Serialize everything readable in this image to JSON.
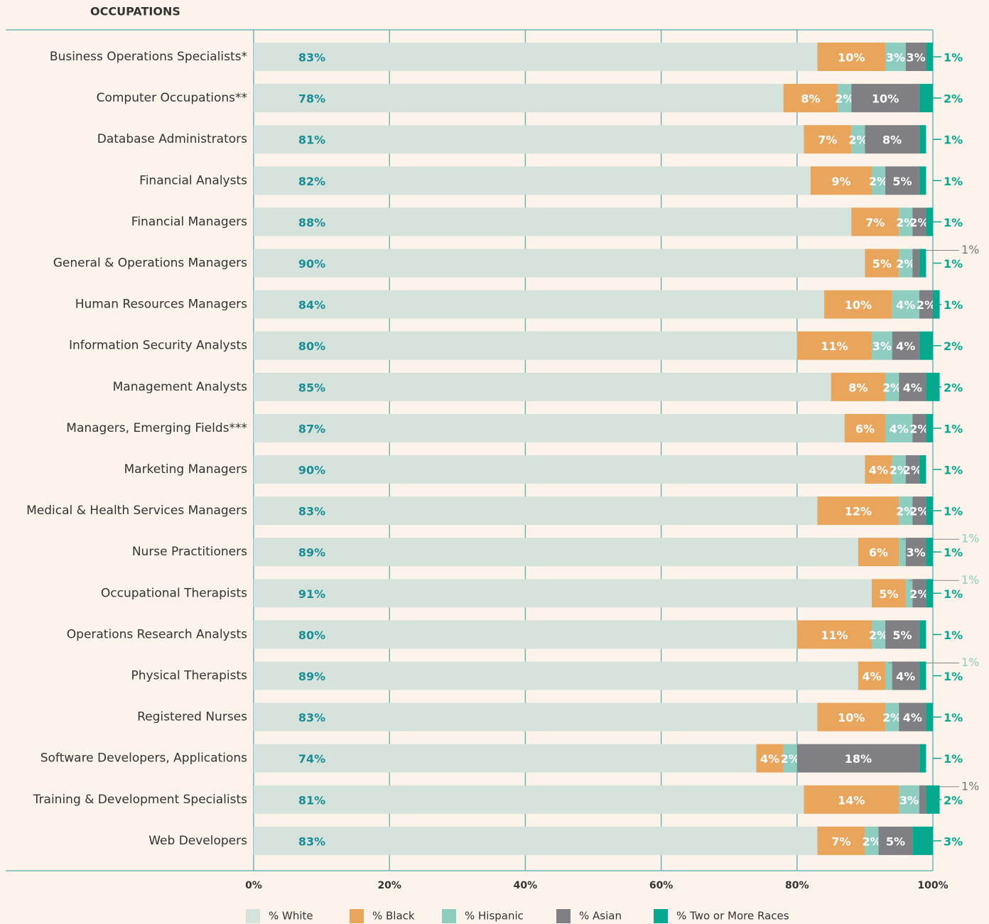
{
  "chart_data": {
    "type": "stacked-bar-horizontal",
    "title": "OCCUPATIONS",
    "categories": [
      "Business Operations Specialists*",
      "Computer Occupations**",
      "Database Administrators",
      "Financial Analysts",
      "Financial Managers",
      "General & Operations Managers",
      "Human Resources Managers",
      "Information Security Analysts",
      "Management Analysts",
      "Managers, Emerging Fields***",
      "Marketing Managers",
      "Medical & Health Services Managers",
      "Nurse Practitioners",
      "Occupational Therapists",
      "Operations Research Analysts",
      "Physical Therapists",
      "Registered Nurses",
      "Software Developers, Applications",
      "Training & Development Specialists",
      "Web Developers"
    ],
    "series": [
      {
        "name": "% White",
        "color": "#d6e2dc",
        "values": [
          83,
          78,
          81,
          82,
          88,
          90,
          84,
          80,
          85,
          87,
          90,
          83,
          89,
          91,
          80,
          89,
          83,
          74,
          81,
          83
        ],
        "value_labels": [
          "83%",
          "78%",
          "81%",
          "82%",
          "88%",
          "90%",
          "84%",
          "80%",
          "85%",
          "87%",
          "90%",
          "83%",
          "89%",
          "91%",
          "80%",
          "89%",
          "83%",
          "74%",
          "81%",
          "83%"
        ]
      },
      {
        "name": "% Black",
        "color": "#e9a55c",
        "values": [
          10,
          8,
          7,
          9,
          7,
          5,
          10,
          11,
          8,
          6,
          4,
          12,
          6,
          5,
          11,
          4,
          10,
          4,
          14,
          7
        ],
        "value_labels": [
          "10%",
          "8%",
          "7%",
          "9%",
          "7%",
          "5%",
          "10%",
          "11%",
          "8%",
          "6%",
          "4%",
          "12%",
          "6%",
          "5%",
          "11%",
          "4%",
          "10%",
          "4%",
          "14%",
          "7%"
        ]
      },
      {
        "name": "% Hispanic",
        "color": "#8ecdbf",
        "values": [
          3,
          2,
          2,
          2,
          2,
          2,
          4,
          3,
          2,
          4,
          2,
          2,
          1,
          1,
          2,
          1,
          2,
          2,
          3,
          2
        ],
        "value_labels": [
          "3%",
          "2%",
          "2%",
          "2%",
          "2%",
          "2%",
          "4%",
          "3%",
          "2%",
          "4%",
          "2%",
          "2%",
          "1%",
          "1%",
          "2%",
          "1%",
          "2%",
          "2%",
          "3%",
          "2%"
        ]
      },
      {
        "name": "% Asian",
        "color": "#7f7f84",
        "values": [
          3,
          10,
          8,
          5,
          2,
          1,
          2,
          4,
          4,
          2,
          2,
          2,
          3,
          2,
          5,
          4,
          4,
          18,
          1,
          5
        ],
        "value_labels": [
          "3%",
          "10%",
          "8%",
          "5%",
          "2%",
          "1%",
          "2%",
          "4%",
          "4%",
          "2%",
          "2%",
          "2%",
          "3%",
          "2%",
          "5%",
          "4%",
          "4%",
          "18%",
          "1%",
          "5%"
        ]
      },
      {
        "name": "% Two or More Races",
        "color": "#06a88e",
        "values": [
          1,
          2,
          1,
          1,
          1,
          1,
          1,
          2,
          2,
          1,
          1,
          1,
          1,
          1,
          1,
          1,
          1,
          1,
          2,
          3
        ],
        "value_labels": [
          "1%",
          "2%",
          "1%",
          "1%",
          "1%",
          "1%",
          "1%",
          "2%",
          "2%",
          "1%",
          "1%",
          "1%",
          "1%",
          "1%",
          "1%",
          "1%",
          "1%",
          "1%",
          "2%",
          "3%"
        ]
      }
    ],
    "xlim": [
      0,
      100
    ],
    "xticks": [
      {
        "value": 0,
        "label": "0%"
      },
      {
        "value": 20,
        "label": "20%"
      },
      {
        "value": 40,
        "label": "40%"
      },
      {
        "value": 60,
        "label": "60%"
      },
      {
        "value": 80,
        "label": "80%"
      },
      {
        "value": 100,
        "label": "100%"
      }
    ],
    "grid": true
  }
}
